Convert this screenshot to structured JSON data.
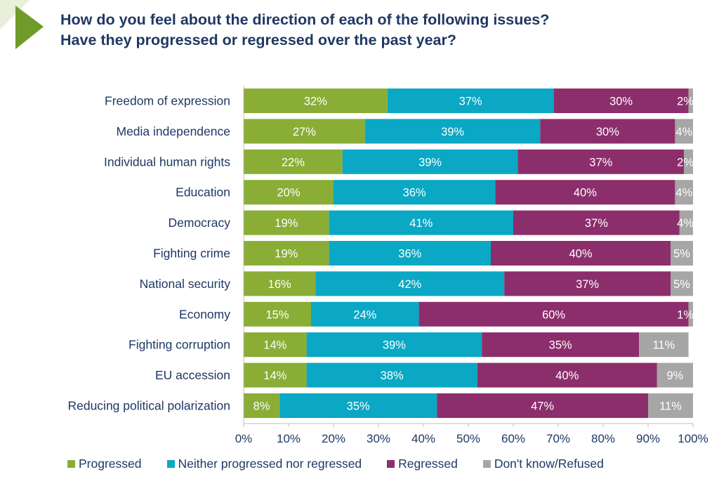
{
  "header": {
    "title_line1": "How do you feel about the direction of each of the following issues?",
    "title_line2": "Have they progressed or regressed over the past year?"
  },
  "colors": {
    "progressed": "#8aad36",
    "neither": "#0aa8c4",
    "regressed": "#8c2e6c",
    "dont_know": "#a6a6a6",
    "text": "#1f3864",
    "deco_light": "#e8f0da",
    "deco_dark": "#6e9b2a"
  },
  "legend": [
    {
      "label": "Progressed",
      "color": "#8aad36"
    },
    {
      "label": "Neither progressed nor regressed",
      "color": "#0aa8c4"
    },
    {
      "label": "Regressed",
      "color": "#8c2e6c"
    },
    {
      "label": "Don't know/Refused",
      "color": "#a6a6a6"
    }
  ],
  "chart_data": {
    "type": "bar",
    "orientation": "horizontal",
    "stacked": true,
    "categories": [
      "Freedom of expression",
      "Media independence",
      "Individual human rights",
      "Education",
      "Democracy",
      "Fighting crime",
      "National security",
      "Economy",
      "Fighting corruption",
      "EU accession",
      "Reducing political polarization"
    ],
    "series": [
      {
        "name": "Progressed",
        "values": [
          32,
          27,
          22,
          20,
          19,
          19,
          16,
          15,
          14,
          14,
          8
        ]
      },
      {
        "name": "Neither progressed nor regressed",
        "values": [
          37,
          39,
          39,
          36,
          41,
          36,
          42,
          24,
          39,
          38,
          35
        ]
      },
      {
        "name": "Regressed",
        "values": [
          30,
          30,
          37,
          40,
          37,
          40,
          37,
          60,
          35,
          40,
          47
        ]
      },
      {
        "name": "Don't know/Refused",
        "values": [
          2,
          4,
          2,
          4,
          4,
          5,
          5,
          1,
          11,
          9,
          11
        ]
      }
    ],
    "labels": [
      [
        "32%",
        "37%",
        "30%",
        "2%"
      ],
      [
        "27%",
        "39%",
        "30%",
        "4%"
      ],
      [
        "22%",
        "39%",
        "37%",
        "2%"
      ],
      [
        "20%",
        "36%",
        "40%",
        "4%"
      ],
      [
        "19%",
        "41%",
        "37%",
        "4%"
      ],
      [
        "19%",
        "36%",
        "40%",
        "5%"
      ],
      [
        "16%",
        "42%",
        "37%",
        "5%"
      ],
      [
        "15%",
        "24%",
        "60%",
        "1%"
      ],
      [
        "14%",
        "39%",
        "35%",
        "11%"
      ],
      [
        "14%",
        "38%",
        "40%",
        "9%"
      ],
      [
        "8%",
        "35%",
        "47%",
        "11%"
      ]
    ],
    "xlim": [
      0,
      100
    ],
    "xticks": [
      "0%",
      "10%",
      "20%",
      "30%",
      "40%",
      "50%",
      "60%",
      "70%",
      "80%",
      "90%",
      "100%"
    ],
    "xlabel": "",
    "ylabel": "",
    "grid": false,
    "legend_position": "bottom"
  }
}
